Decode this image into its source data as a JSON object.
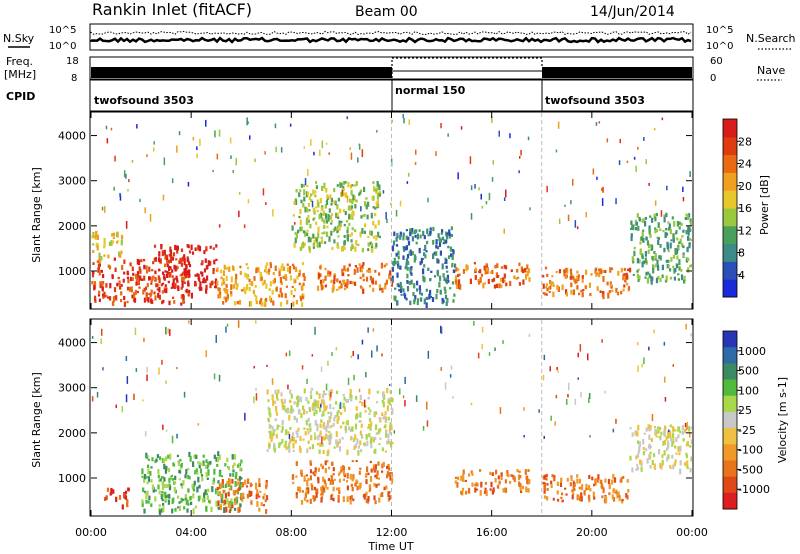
{
  "header": {
    "title": "Rankin Inlet (fitACF)",
    "beam": "Beam 00",
    "date": "14/Jun/2014"
  },
  "noise_panel": {
    "left_label": "N.Sky",
    "right_label": "N.Search",
    "left_ticks": [
      "10^5",
      "10^0"
    ],
    "right_ticks": [
      "10^5",
      "10^0"
    ]
  },
  "freq_panel": {
    "left_label_1": "Freq.",
    "left_label_2": "[MHz]",
    "left_ticks": [
      "18",
      "8"
    ],
    "right_label": "Nave",
    "right_ticks": [
      "60",
      "0"
    ]
  },
  "cpid_panel": {
    "label": "CPID",
    "modes": [
      {
        "name": "twofsound 3503",
        "start_hour": 0,
        "end_hour": 12
      },
      {
        "name": "normal 150",
        "start_hour": 12,
        "end_hour": 18
      },
      {
        "name": "twofsound 3503",
        "start_hour": 18,
        "end_hour": 24
      }
    ]
  },
  "x_axis": {
    "label": "Time UT",
    "ticks": [
      "00:00",
      "04:00",
      "08:00",
      "12:00",
      "16:00",
      "20:00",
      "00:00"
    ],
    "range_hours": [
      0,
      24
    ]
  },
  "power_panel": {
    "ylabel": "Slant Range [km]",
    "yticks": [
      "1000",
      "2000",
      "3000",
      "4000"
    ],
    "colorbar_label": "Power [dB]",
    "colorbar_ticks": [
      "4",
      "8",
      "12",
      "16",
      "20",
      "24",
      "28"
    ],
    "colors": [
      "#1a2ad8",
      "#2a50b8",
      "#3e8a86",
      "#4aa05a",
      "#9ac83c",
      "#e6c82a",
      "#f0a01e",
      "#ea6a14",
      "#e03a10",
      "#d81c1c"
    ]
  },
  "velocity_panel": {
    "ylabel": "Slant Range [km]",
    "yticks": [
      "1000",
      "2000",
      "3000",
      "4000"
    ],
    "colorbar_label": "Velocity [m s-1]",
    "colorbar_ticks": [
      "1000",
      "500",
      "100",
      "25",
      "-25",
      "-100",
      "-500",
      "-1000"
    ],
    "colors": [
      "#2836b4",
      "#2e6aa8",
      "#3c8a64",
      "#50ba3c",
      "#a8d84a",
      "#c8c8c8",
      "#f0c040",
      "#f09828",
      "#e8741a",
      "#e04818",
      "#dc1e1e"
    ]
  },
  "chart_data": {
    "type": "heatmap",
    "x_units": "hours UT",
    "y_units": "slant range km",
    "ylim": [
      180,
      4500
    ],
    "xlim": [
      0,
      24
    ],
    "power_regions": [
      {
        "t0": 0.0,
        "t1": 4.0,
        "r0": 300,
        "r1": 1300,
        "level": 8
      },
      {
        "t0": 0.0,
        "t1": 1.2,
        "r0": 1300,
        "r1": 1900,
        "level": 5
      },
      {
        "t0": 2.5,
        "t1": 5.0,
        "r0": 600,
        "r1": 1600,
        "level": 9
      },
      {
        "t0": 5.0,
        "t1": 8.5,
        "r0": 300,
        "r1": 1200,
        "level": 6
      },
      {
        "t0": 8.0,
        "t1": 11.5,
        "r0": 1500,
        "r1": 3000,
        "level": 4
      },
      {
        "t0": 9.0,
        "t1": 12.0,
        "r0": 600,
        "r1": 1200,
        "level": 7
      },
      {
        "t0": 12.0,
        "t1": 14.5,
        "r0": 300,
        "r1": 2000,
        "level": 2
      },
      {
        "t0": 14.5,
        "t1": 17.5,
        "r0": 700,
        "r1": 1200,
        "level": 7
      },
      {
        "t0": 18.0,
        "t1": 21.5,
        "r0": 500,
        "r1": 1100,
        "level": 7
      },
      {
        "t0": 21.5,
        "t1": 24.0,
        "r0": 800,
        "r1": 2300,
        "level": 3
      }
    ],
    "velocity_regions": [
      {
        "t0": 0.5,
        "t1": 1.5,
        "r0": 400,
        "r1": 800,
        "level": 9
      },
      {
        "t0": 2.0,
        "t1": 6.0,
        "r0": 300,
        "r1": 1600,
        "level": 3
      },
      {
        "t0": 5.0,
        "t1": 7.0,
        "r0": 300,
        "r1": 1000,
        "level": 8
      },
      {
        "t0": 7.0,
        "t1": 12.0,
        "r0": 1600,
        "r1": 3000,
        "level": 5
      },
      {
        "t0": 8.0,
        "t1": 12.0,
        "r0": 500,
        "r1": 1400,
        "level": 8
      },
      {
        "t0": 14.5,
        "t1": 17.5,
        "r0": 700,
        "r1": 1200,
        "level": 8
      },
      {
        "t0": 18.0,
        "t1": 21.5,
        "r0": 500,
        "r1": 1100,
        "level": 8
      },
      {
        "t0": 21.5,
        "t1": 24.0,
        "r0": 1200,
        "r1": 2200,
        "level": 5
      }
    ]
  }
}
